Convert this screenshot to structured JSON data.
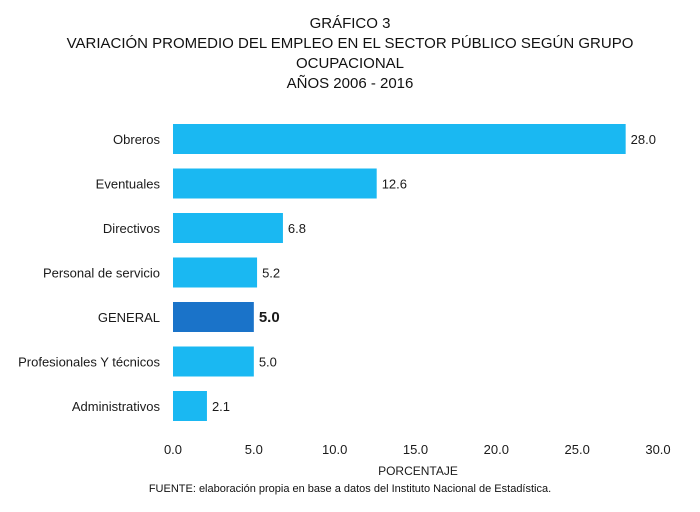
{
  "chart_data": {
    "type": "bar",
    "orientation": "horizontal",
    "title_lines": [
      "GRÁFICO 3",
      "VARIACIÓN PROMEDIO DEL EMPLEO EN EL SECTOR PÚBLICO SEGÚN GRUPO",
      "OCUPACIONAL",
      "AÑOS 2006 - 2016"
    ],
    "categories": [
      "Obreros",
      "Eventuales",
      "Directivos",
      "Personal de servicio",
      "GENERAL",
      "Profesionales Y técnicos",
      "Administrativos"
    ],
    "values": [
      28.0,
      12.6,
      6.8,
      5.2,
      5.0,
      5.0,
      2.1
    ],
    "value_labels": [
      "28.0",
      "12.6",
      "6.8",
      "5.2",
      "5.0",
      "5.0",
      "2.1"
    ],
    "highlighted_category": "GENERAL",
    "xlabel": "PORCENTAJE",
    "xlim": [
      0,
      30
    ],
    "xticks": [
      0,
      5,
      10,
      15,
      20,
      25,
      30
    ],
    "xtick_labels": [
      "0.0",
      "5.0",
      "10.0",
      "15.0",
      "20.0",
      "25.0",
      "30.0"
    ],
    "grid": false,
    "colors": {
      "bar": "#1ab8f2",
      "highlight_bar": "#1a73c9"
    },
    "source": "FUENTE: elaboración propia en base a datos del Instituto Nacional de Estadística."
  }
}
